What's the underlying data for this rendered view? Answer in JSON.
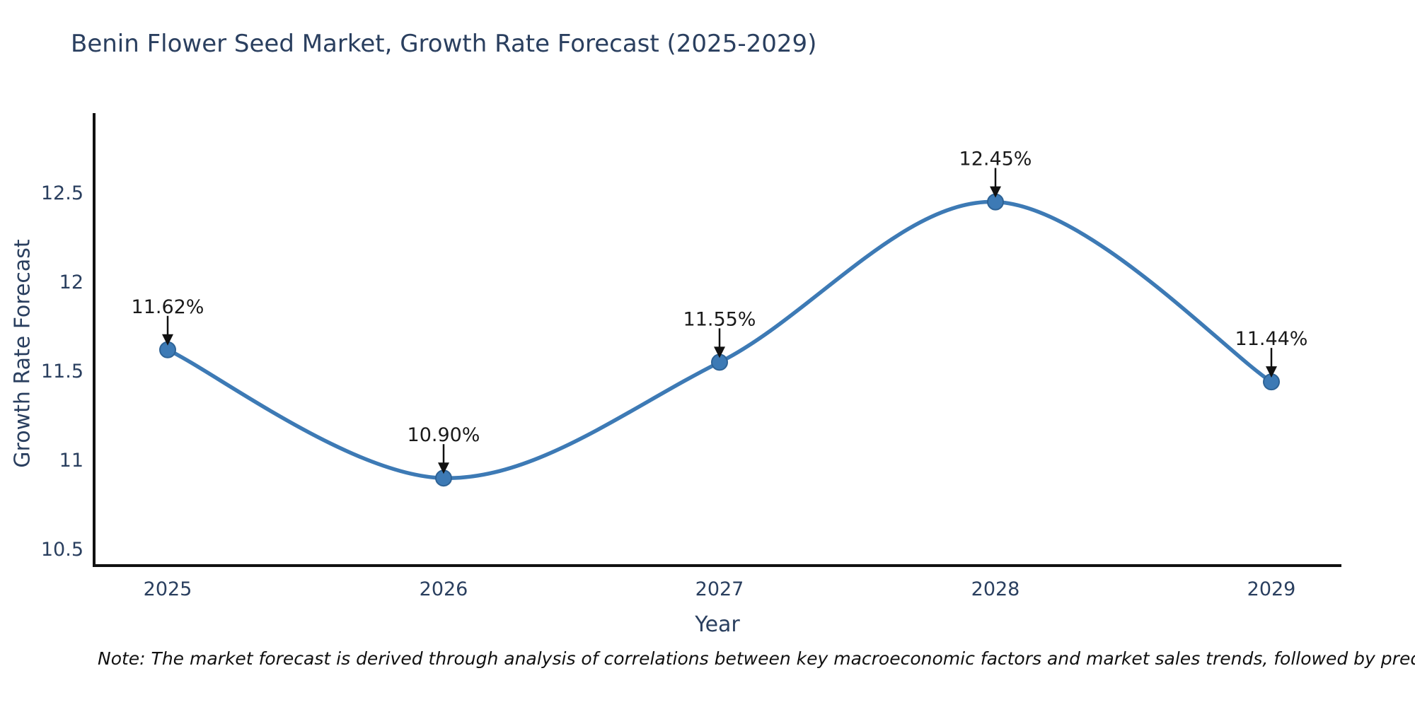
{
  "chart_data": {
    "type": "line",
    "line_shape": "spline",
    "title": "Benin Flower Seed Market, Growth Rate Forecast (2025-2029)",
    "xlabel": "Year",
    "ylabel": "Growth Rate Forecast",
    "x": [
      2025,
      2026,
      2027,
      2028,
      2029
    ],
    "series": [
      {
        "name": "Growth Rate Forecast",
        "values": [
          11.62,
          10.9,
          11.55,
          12.45,
          11.44
        ]
      }
    ],
    "point_labels": [
      "11.62%",
      "10.90%",
      "11.55%",
      "12.45%",
      "11.44%"
    ],
    "x_tick_labels": [
      "2025",
      "2026",
      "2027",
      "2028",
      "2029"
    ],
    "y_tick_labels": [
      "10.5",
      "11",
      "11.5",
      "12",
      "12.5"
    ],
    "y_tick_values": [
      10.5,
      11,
      11.5,
      12,
      12.5
    ],
    "xlim": [
      2024.73,
      2029.25
    ],
    "ylim": [
      10.41,
      12.95
    ],
    "grid": false,
    "legend": "none",
    "markers": true,
    "annotations_have_arrows": true,
    "colors": {
      "line": "#3d7ab5",
      "marker": "#3d7ab5",
      "marker_edge": "#2e6396",
      "axis": "#111111",
      "tick_text": "#2a3f5f",
      "annotation_text": "#1a1a1a",
      "arrow": "#111111",
      "background": "#ffffff"
    }
  },
  "note": "Note: The market forecast is derived through analysis of correlations between key macroeconomic factors and market sales trends, followed by predictive modeling to project future sal"
}
